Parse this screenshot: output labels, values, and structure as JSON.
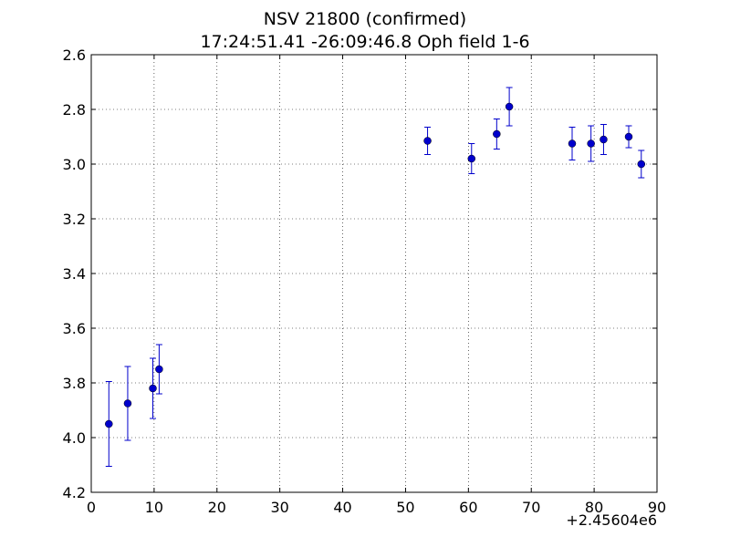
{
  "chart_data": {
    "type": "scatter",
    "title": "NSV 21800 (confirmed)",
    "subtitle": "17:24:51.41 -26:09:46.8 Oph field 1-6",
    "xlabel": "",
    "ylabel": "",
    "x_offset_label": "+2.45604e6",
    "xlim": [
      0,
      90
    ],
    "ylim": [
      4.2,
      2.6
    ],
    "y_inverted": true,
    "grid": true,
    "x_ticks": [
      "0",
      "10",
      "20",
      "30",
      "40",
      "50",
      "60",
      "70",
      "80",
      "90"
    ],
    "y_ticks": [
      "2.6",
      "2.8",
      "3.0",
      "3.2",
      "3.4",
      "3.6",
      "3.8",
      "4.0",
      "4.2"
    ],
    "marker_color": "#0000cc",
    "series": [
      {
        "points": [
          {
            "x": 2.8,
            "y": 3.95,
            "err": 0.155
          },
          {
            "x": 5.8,
            "y": 3.875,
            "err": 0.135
          },
          {
            "x": 9.8,
            "y": 3.82,
            "err": 0.11
          },
          {
            "x": 10.8,
            "y": 3.75,
            "err": 0.09
          },
          {
            "x": 53.5,
            "y": 2.915,
            "err": 0.05
          },
          {
            "x": 60.5,
            "y": 2.98,
            "err": 0.055
          },
          {
            "x": 64.5,
            "y": 2.89,
            "err": 0.055
          },
          {
            "x": 66.5,
            "y": 2.79,
            "err": 0.07
          },
          {
            "x": 76.5,
            "y": 2.925,
            "err": 0.06
          },
          {
            "x": 79.5,
            "y": 2.925,
            "err": 0.065
          },
          {
            "x": 81.5,
            "y": 2.91,
            "err": 0.055
          },
          {
            "x": 85.5,
            "y": 2.9,
            "err": 0.04
          },
          {
            "x": 87.5,
            "y": 3.0,
            "err": 0.05
          }
        ]
      }
    ]
  }
}
